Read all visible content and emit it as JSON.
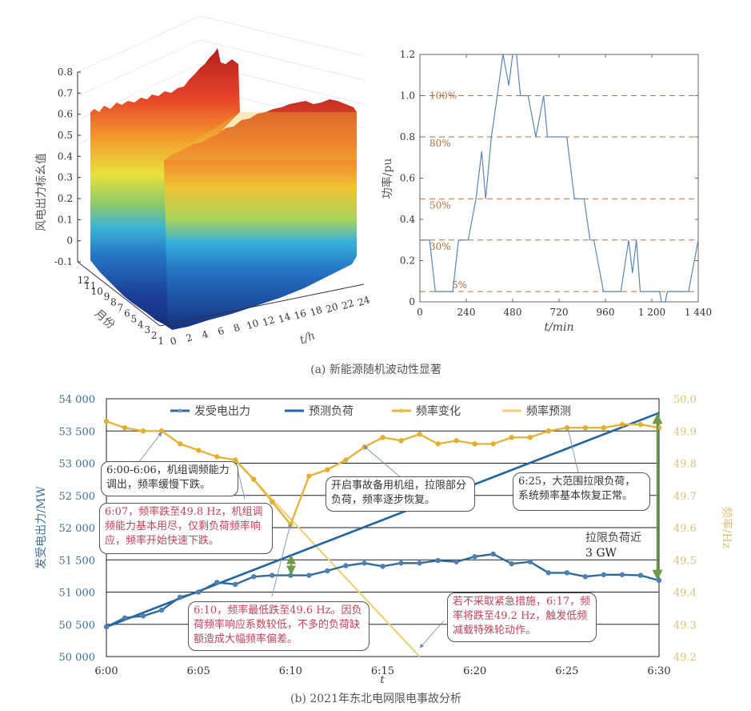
{
  "panel_a": {
    "caption": "(a) 新能源随机波动性显著",
    "surface": {
      "title": "",
      "zlabel": "风电出力标幺值",
      "ylabel": "月份",
      "xlabel": "t/h",
      "zticks": [
        "0.8",
        "0.7",
        "0.6",
        "0.5",
        "0.4",
        "0.3",
        "0.2",
        "0.1",
        "0",
        "-0.1"
      ],
      "month_ticks": [
        "12",
        "11",
        "10",
        "9",
        "8",
        "7",
        "6",
        "5",
        "4",
        "3",
        "2",
        "1"
      ],
      "hour_ticks": [
        "0",
        "2",
        "4",
        "6",
        "8",
        "10",
        "12",
        "14",
        "16",
        "18",
        "20",
        "22",
        "24"
      ]
    }
  },
  "panel_b": {
    "caption": "(b) 2021年东北电网限电事故分析",
    "callouts": [
      {
        "text": "6:00-6:06，机组调频能力调出，频率缓慢下跌。",
        "style": "dark"
      },
      {
        "text": "6:07，频率跌至49.8 Hz，机组调频能力基本用尽，仅剩负荷频率响应，频率开始快速下跌。",
        "style": "red"
      },
      {
        "text": "开启事故备用机组，拉限部分负荷，频率逐步恢复。",
        "style": "dark"
      },
      {
        "text": "6:25，大范围拉限负荷，系统频率基本恢复正常。",
        "style": "dark"
      },
      {
        "text": "6:10，频率最低跌至49.6 Hz。因负荷频率响应系数较低，不多的负荷缺额造成大幅频率偏差。",
        "style": "red"
      },
      {
        "text": "若不采取紧急措施，6:17，频率将跌至49.2 Hz，触发低频减载特殊轮动作。",
        "style": "red"
      }
    ],
    "gap_label_line1": "拉限负荷近",
    "gap_label_line2": "3 GW"
  },
  "colors": {
    "power": "#2e6a9e",
    "load": "#2566a0",
    "freq": "#e3b53c",
    "freq_pred": "#ecd27a",
    "ref_line": "#b5703c",
    "gap_arrow": "#6e9a4b",
    "right_axis_text": "#d9c27a",
    "left_axis_text": "#3f6f98"
  },
  "chart_data": [
    {
      "type": "line",
      "title": "",
      "xlabel": "t/min",
      "ylabel": "功率/pu",
      "xlim": [
        0,
        1440
      ],
      "ylim": [
        0,
        1.2
      ],
      "xticks": [
        0,
        240,
        480,
        720,
        960,
        1200,
        1440
      ],
      "xtick_labels": [
        "0",
        "240",
        "480",
        "720",
        "960",
        "1 200",
        "1 440"
      ],
      "yticks": [
        0,
        0.2,
        0.4,
        0.6,
        0.8,
        1.0,
        1.2
      ],
      "ytick_labels": [
        "0",
        "0.2",
        "0.4",
        "0.6",
        "0.8",
        "1.0",
        "1.2"
      ],
      "reference_lines": [
        {
          "y": 1.0,
          "label": "100%"
        },
        {
          "y": 0.8,
          "label": "80%"
        },
        {
          "y": 0.5,
          "label": "50%"
        },
        {
          "y": 0.3,
          "label": "30%"
        },
        {
          "y": 0.05,
          "label": "5%"
        }
      ],
      "series": [
        {
          "name": "功率",
          "x": [
            0,
            50,
            80,
            170,
            200,
            250,
            290,
            320,
            340,
            370,
            400,
            430,
            460,
            480,
            500,
            520,
            560,
            600,
            640,
            660,
            700,
            760,
            800,
            850,
            880,
            900,
            950,
            1000,
            1040,
            1080,
            1100,
            1120,
            1140,
            1180,
            1240,
            1250,
            1270,
            1280,
            1390,
            1440
          ],
          "y": [
            0.3,
            0.3,
            0.05,
            0.05,
            0.3,
            0.3,
            0.5,
            0.73,
            0.5,
            0.8,
            1.0,
            1.2,
            1.05,
            1.2,
            1.2,
            1.0,
            1.0,
            0.8,
            1.0,
            0.8,
            0.8,
            0.8,
            0.5,
            0.5,
            0.3,
            0.3,
            0.05,
            0.05,
            0.05,
            0.3,
            0.14,
            0.3,
            0.05,
            0.05,
            0.05,
            0.0,
            0.0,
            0.05,
            0.05,
            0.3
          ]
        }
      ]
    },
    {
      "type": "line",
      "title": "",
      "xlabel": "t",
      "ylabel": "发受电出力/MW",
      "y2label": "频率/Hz",
      "ylim": [
        50000,
        54000
      ],
      "y2lim": [
        49.2,
        50.0
      ],
      "yticks": [
        50000,
        50500,
        51000,
        51500,
        52000,
        52500,
        53000,
        53500,
        54000
      ],
      "ytick_labels": [
        "50 000",
        "50 500",
        "51 000",
        "51 500",
        "52 000",
        "52 500",
        "53 000",
        "53 500",
        "54 000"
      ],
      "y2ticks": [
        49.2,
        49.3,
        49.4,
        49.5,
        49.6,
        49.7,
        49.8,
        49.9,
        50.0
      ],
      "y2tick_labels": [
        "49.2",
        "49.3",
        "49.4",
        "49.5",
        "49.6",
        "49.7",
        "49.8",
        "49.9",
        "50.0"
      ],
      "xticks": [
        0,
        5,
        10,
        15,
        20,
        25,
        30
      ],
      "xtick_labels": [
        "6:00",
        "6:05",
        "6:10",
        "6:15",
        "6:20",
        "6:25",
        "6:30"
      ],
      "grid": true,
      "legend": "top",
      "series": [
        {
          "name": "发受电出力",
          "axis": "left",
          "marker": true,
          "x": [
            0,
            1,
            2,
            3,
            4,
            5,
            6,
            7,
            8,
            9,
            10,
            11,
            12,
            13,
            14,
            15,
            16,
            17,
            18,
            19,
            20,
            21,
            22,
            23,
            24,
            25,
            26,
            27,
            28,
            29,
            30
          ],
          "y": [
            50460,
            50600,
            50630,
            50720,
            50920,
            51000,
            51150,
            51120,
            51240,
            51260,
            51260,
            51260,
            51330,
            51410,
            51450,
            51400,
            51450,
            51450,
            51490,
            51470,
            51550,
            51590,
            51440,
            51470,
            51300,
            51300,
            51240,
            51270,
            51270,
            51260,
            51180
          ]
        },
        {
          "name": "预测负荷",
          "axis": "left",
          "marker": false,
          "x": [
            0,
            30
          ],
          "y": [
            50460,
            53780
          ]
        },
        {
          "name": "频率变化",
          "axis": "right",
          "marker": true,
          "x": [
            0,
            1,
            2,
            3,
            4,
            5,
            6,
            7,
            8,
            9,
            10,
            11,
            12,
            13,
            14,
            15,
            16,
            17,
            18,
            19,
            20,
            21,
            22,
            23,
            24,
            25,
            26,
            27,
            28,
            29,
            30
          ],
          "y": [
            49.93,
            49.91,
            49.9,
            49.9,
            49.86,
            49.84,
            49.82,
            49.81,
            49.75,
            49.68,
            49.61,
            49.76,
            49.78,
            49.81,
            49.85,
            49.88,
            49.87,
            49.89,
            49.86,
            49.87,
            49.86,
            49.86,
            49.88,
            49.88,
            49.9,
            49.91,
            49.91,
            49.91,
            49.92,
            49.92,
            49.91
          ]
        },
        {
          "name": "频率预测",
          "axis": "right",
          "marker": false,
          "x": [
            7,
            17
          ],
          "y": [
            49.81,
            49.2
          ]
        }
      ]
    }
  ]
}
